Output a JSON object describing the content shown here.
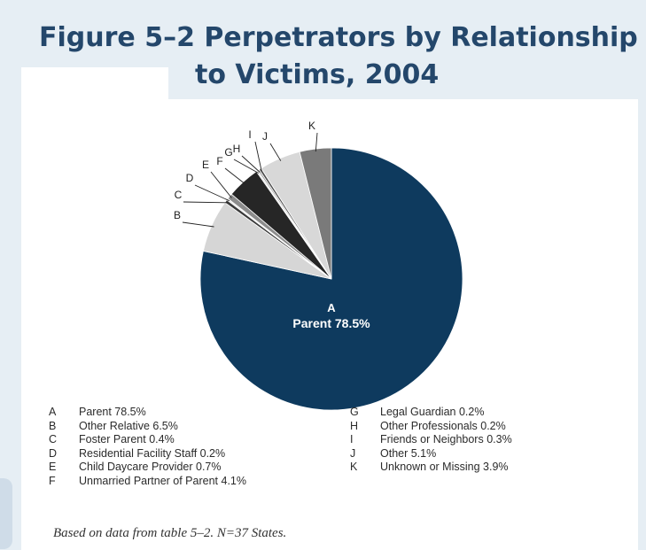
{
  "figure": {
    "title_line1": "Figure 5–2 Perpetrators by Relationship",
    "title_line2": "to Victims, 2004",
    "source_note": "Based on data from table 5–2. N=37 States."
  },
  "chart_data": {
    "type": "pie",
    "title": "Figure 5–2 Perpetrators by Relationship to Victims, 2004",
    "center_label_key": "A",
    "center_label_text": "Parent 78.5%",
    "slices": [
      {
        "key": "A",
        "label": "Parent",
        "value": 78.5,
        "color": "#0e3a5e"
      },
      {
        "key": "B",
        "label": "Other Relative",
        "value": 6.5,
        "color": "#d6d6d6"
      },
      {
        "key": "C",
        "label": "Foster Parent",
        "value": 0.4,
        "color": "#3a3a3a"
      },
      {
        "key": "D",
        "label": "Residential Facility Staff",
        "value": 0.2,
        "color": "#e8e8e8"
      },
      {
        "key": "E",
        "label": "Child Daycare Provider",
        "value": 0.7,
        "color": "#8c8c8c"
      },
      {
        "key": "F",
        "label": "Unmarried Partner of Parent",
        "value": 4.1,
        "color": "#262626"
      },
      {
        "key": "G",
        "label": "Legal Guardian",
        "value": 0.2,
        "color": "#e8e8e8"
      },
      {
        "key": "H",
        "label": "Other Professionals",
        "value": 0.2,
        "color": "#9a9a9a"
      },
      {
        "key": "I",
        "label": "Friends or Neighbors",
        "value": 0.3,
        "color": "#505050"
      },
      {
        "key": "J",
        "label": "Other",
        "value": 5.1,
        "color": "#d8d8d8"
      },
      {
        "key": "K",
        "label": "Unknown or Missing",
        "value": 3.9,
        "color": "#7a7a7a"
      }
    ],
    "legend": [
      {
        "key": "A",
        "text": "Parent 78.5%"
      },
      {
        "key": "B",
        "text": "Other Relative 6.5%"
      },
      {
        "key": "C",
        "text": "Foster Parent 0.4%"
      },
      {
        "key": "D",
        "text": "Residential Facility Staff 0.2%"
      },
      {
        "key": "E",
        "text": "Child Daycare Provider 0.7%"
      },
      {
        "key": "F",
        "text": "Unmarried Partner of Parent 4.1%"
      },
      {
        "key": "G",
        "text": "Legal Guardian 0.2%"
      },
      {
        "key": "H",
        "text": "Other Professionals 0.2%"
      },
      {
        "key": "I",
        "text": "Friends or Neighbors 0.3%"
      },
      {
        "key": "J",
        "text": "Other 5.1%"
      },
      {
        "key": "K",
        "text": "Unknown or Missing 3.9%"
      }
    ]
  }
}
